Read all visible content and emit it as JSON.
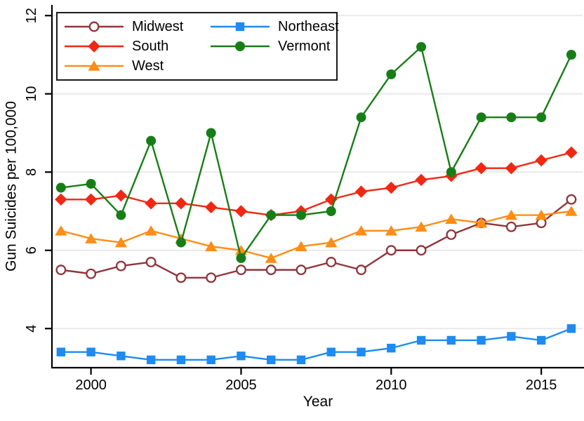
{
  "chart_data": {
    "type": "line",
    "title": "",
    "xlabel": "Year",
    "ylabel": "Gun Suicides per 100,000",
    "x": [
      1999,
      2000,
      2001,
      2002,
      2003,
      2004,
      2005,
      2006,
      2007,
      2008,
      2009,
      2010,
      2011,
      2012,
      2013,
      2014,
      2015,
      2016
    ],
    "x_ticks": [
      2000,
      2005,
      2010,
      2015
    ],
    "y_ticks": [
      4,
      6,
      8,
      10,
      12
    ],
    "xlim": [
      1998.7,
      2016.45
    ],
    "ylim": [
      3.0,
      12.2
    ],
    "grid": "horizontal-only",
    "grid_color": "#e7e7e7",
    "axis_color": "#000000",
    "background": "#ffffff",
    "legend": {
      "position": "top-left",
      "columns": 2,
      "order": [
        "Midwest",
        "South",
        "West",
        "Northeast",
        "Vermont"
      ]
    },
    "series": [
      {
        "name": "Midwest",
        "color": "#90353b",
        "marker": "open-circle",
        "values": [
          5.5,
          5.4,
          5.6,
          5.7,
          5.3,
          5.3,
          5.5,
          5.5,
          5.5,
          5.7,
          5.5,
          6.0,
          6.0,
          6.4,
          6.7,
          6.6,
          6.7,
          7.3
        ]
      },
      {
        "name": "South",
        "color": "#f02813",
        "marker": "diamond",
        "values": [
          7.3,
          7.3,
          7.4,
          7.2,
          7.2,
          7.1,
          7.0,
          6.9,
          7.0,
          7.3,
          7.5,
          7.6,
          7.8,
          7.9,
          8.1,
          8.1,
          8.3,
          8.5
        ]
      },
      {
        "name": "West",
        "color": "#ff8d16",
        "marker": "triangle",
        "values": [
          6.5,
          6.3,
          6.2,
          6.5,
          6.3,
          6.1,
          6.0,
          5.8,
          6.1,
          6.2,
          6.5,
          6.5,
          6.6,
          6.8,
          6.7,
          6.9,
          6.9,
          7.0
        ]
      },
      {
        "name": "Northeast",
        "color": "#1d8bf1",
        "marker": "square",
        "values": [
          3.4,
          3.4,
          3.3,
          3.2,
          3.2,
          3.2,
          3.3,
          3.2,
          3.2,
          3.4,
          3.4,
          3.5,
          3.7,
          3.7,
          3.7,
          3.8,
          3.7,
          4.0
        ]
      },
      {
        "name": "Vermont",
        "color": "#177e17",
        "marker": "circle",
        "values": [
          7.6,
          7.7,
          6.9,
          8.8,
          6.2,
          9.0,
          5.8,
          6.9,
          6.9,
          7.0,
          9.4,
          10.5,
          11.2,
          8.0,
          9.4,
          9.4,
          9.4,
          11.0
        ]
      }
    ]
  }
}
